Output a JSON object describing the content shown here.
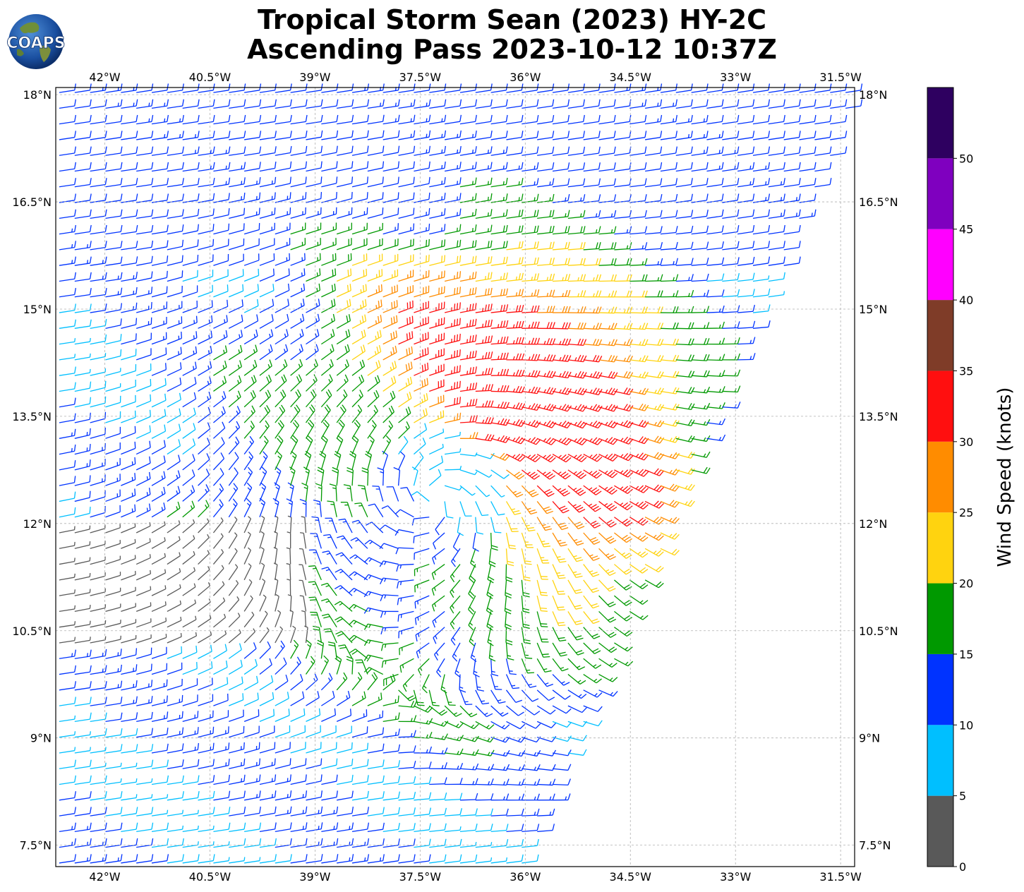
{
  "title_line1": "Tropical Storm Sean (2023) HY-2C",
  "title_line2": "Ascending Pass 2023-10-12 10:37Z",
  "logo_text": "COAPS",
  "map": {
    "lon_range": [
      -42.7,
      -31.3
    ],
    "lat_range": [
      7.2,
      18.1
    ],
    "lon_ticks": [
      {
        "value": -42,
        "label": "42°W"
      },
      {
        "value": -40.5,
        "label": "40.5°W"
      },
      {
        "value": -39,
        "label": "39°W"
      },
      {
        "value": -37.5,
        "label": "37.5°W"
      },
      {
        "value": -36,
        "label": "36°W"
      },
      {
        "value": -34.5,
        "label": "34.5°W"
      },
      {
        "value": -33,
        "label": "33°W"
      },
      {
        "value": -31.5,
        "label": "31.5°W"
      }
    ],
    "lat_ticks": [
      {
        "value": 18,
        "label": "18°N"
      },
      {
        "value": 16.5,
        "label": "16.5°N"
      },
      {
        "value": 15,
        "label": "15°N"
      },
      {
        "value": 13.5,
        "label": "13.5°N"
      },
      {
        "value": 12,
        "label": "12°N"
      },
      {
        "value": 10.5,
        "label": "10.5°N"
      },
      {
        "value": 9,
        "label": "9°N"
      },
      {
        "value": 7.5,
        "label": "7.5°N"
      }
    ],
    "grid": true,
    "storm_center_approx": {
      "lon": -37.3,
      "lat": 12.35
    },
    "swath_east_edge": [
      {
        "lon": -31.3,
        "lat": 17.9
      },
      {
        "lon": -36.0,
        "lat": 7.2
      }
    ]
  },
  "colorbar": {
    "label": "Wind Speed (knots)",
    "bins": [
      {
        "min": 0,
        "max": 5,
        "color": "#595959"
      },
      {
        "min": 5,
        "max": 10,
        "color": "#00bfff"
      },
      {
        "min": 10,
        "max": 15,
        "color": "#0033ff"
      },
      {
        "min": 15,
        "max": 20,
        "color": "#009900"
      },
      {
        "min": 20,
        "max": 25,
        "color": "#ffd30f"
      },
      {
        "min": 25,
        "max": 30,
        "color": "#ff8c00"
      },
      {
        "min": 30,
        "max": 35,
        "color": "#ff0f0f"
      },
      {
        "min": 35,
        "max": 40,
        "color": "#7f3c28"
      },
      {
        "min": 40,
        "max": 45,
        "color": "#ff00ff"
      },
      {
        "min": 45,
        "max": 50,
        "color": "#7f00bf"
      },
      {
        "min": 50,
        "max": 55,
        "color": "#2e0060"
      }
    ],
    "tick_labels": [
      "0",
      "5",
      "10",
      "15",
      "20",
      "25",
      "30",
      "35",
      "40",
      "45",
      "50"
    ]
  }
}
